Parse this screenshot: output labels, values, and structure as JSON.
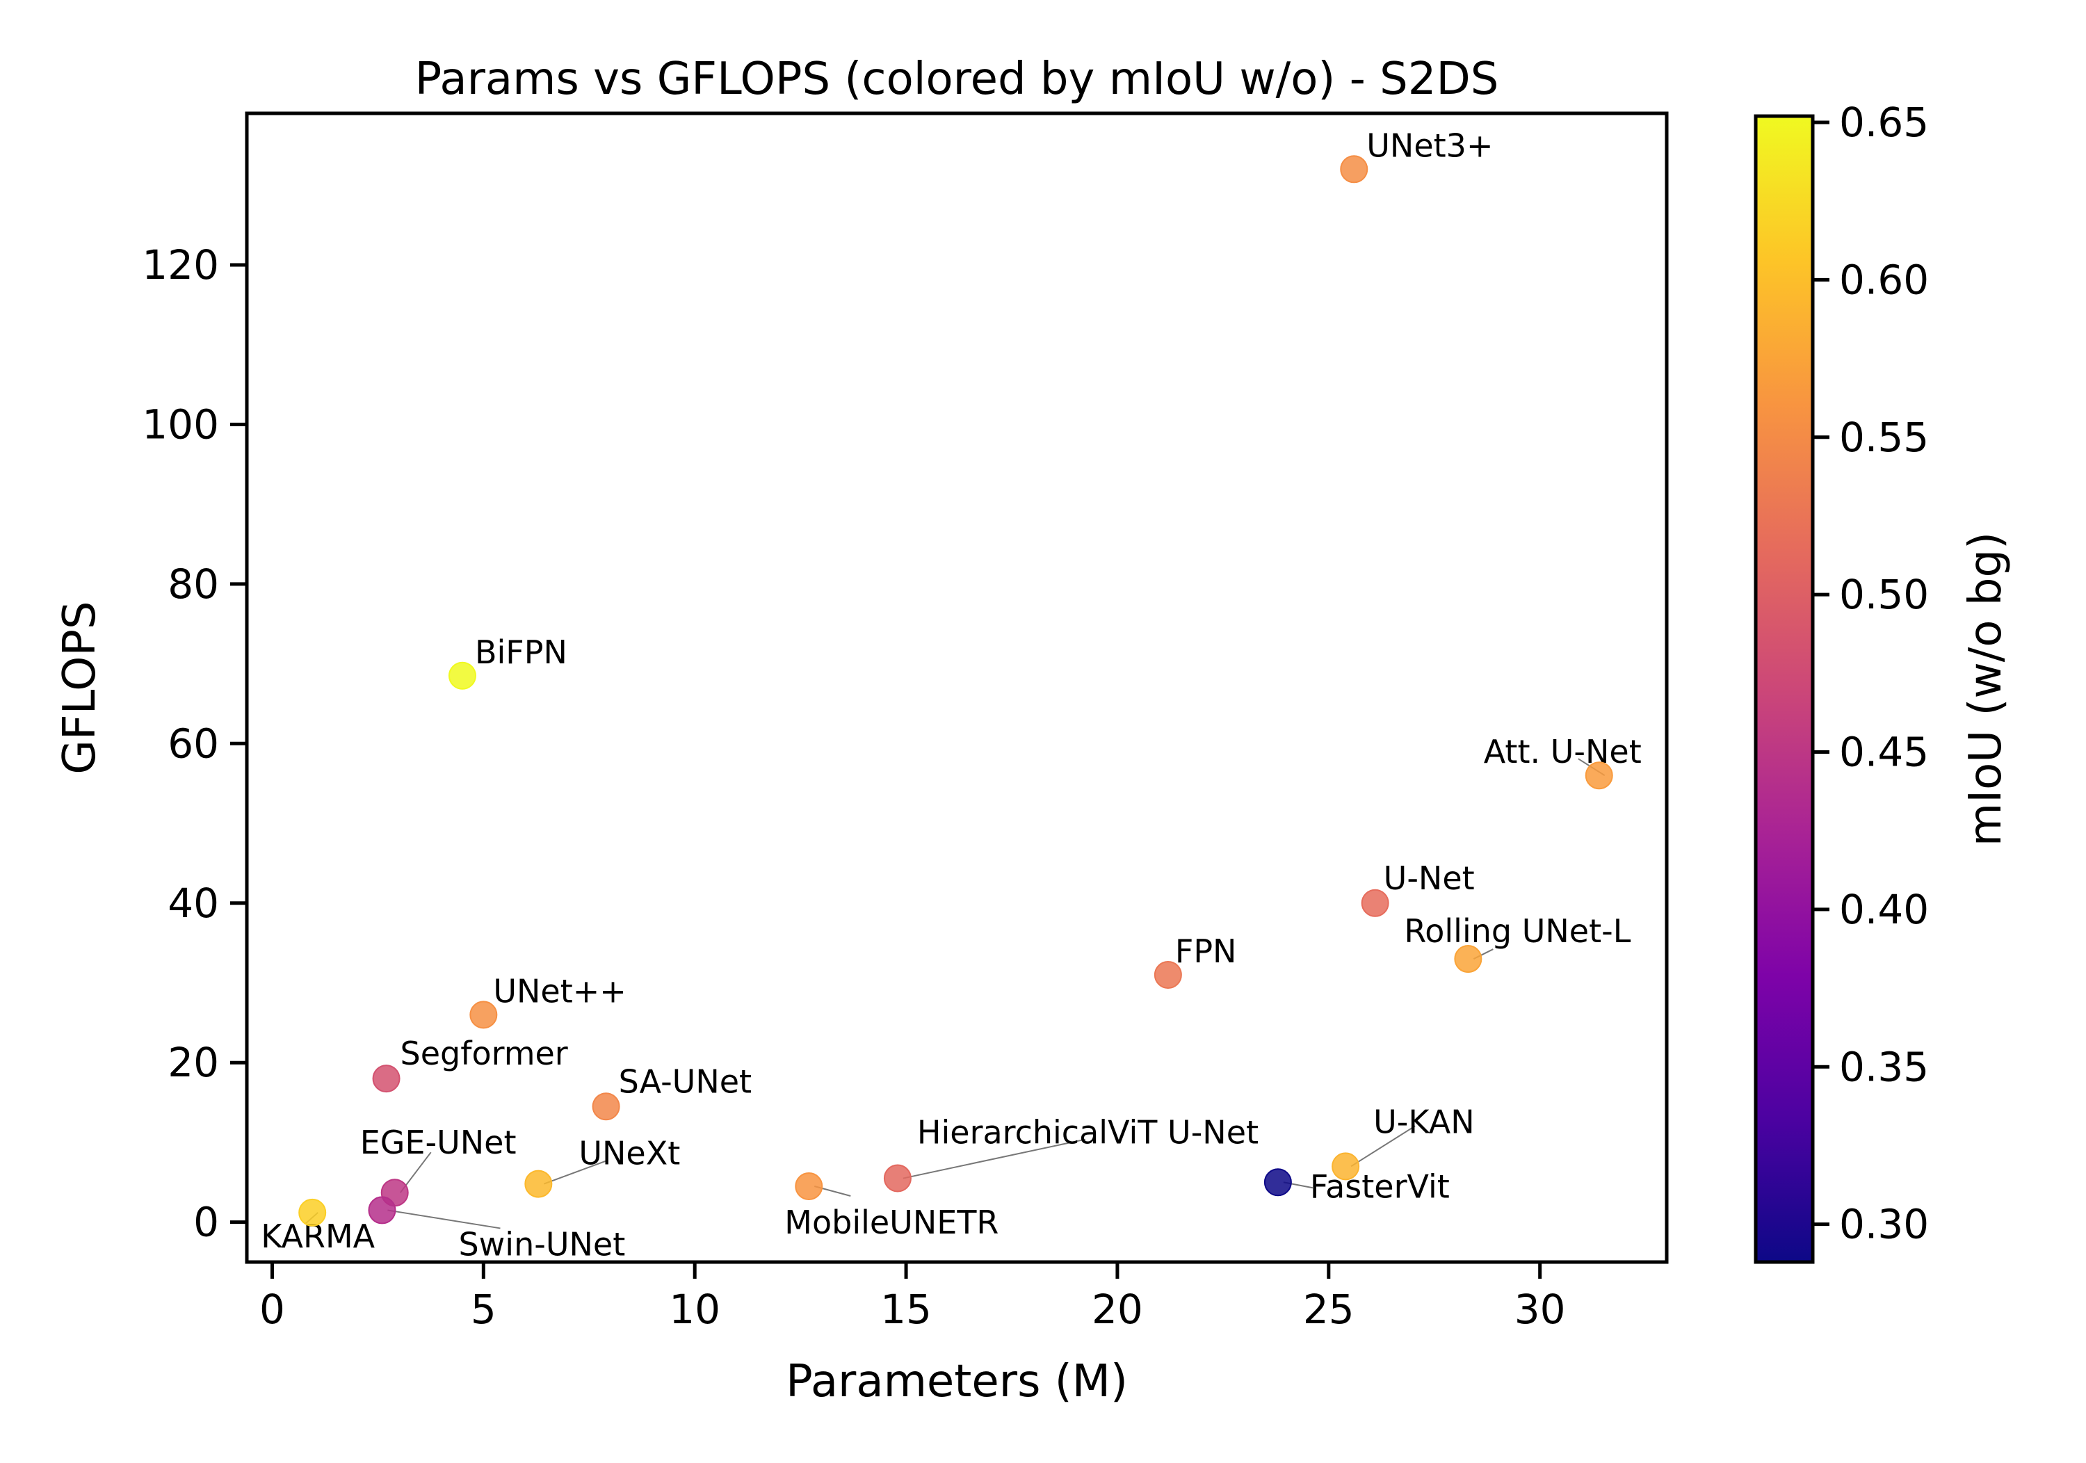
{
  "chart_data": {
    "type": "scatter",
    "title": "Params vs GFLOPS (colored by mIoU w/o) - S2DS",
    "xlabel": "Parameters (M)",
    "ylabel": "GFLOPS",
    "xlim": [
      -0.6,
      33
    ],
    "ylim": [
      -5,
      139
    ],
    "xticks": [
      0,
      5,
      10,
      15,
      20,
      25,
      30
    ],
    "yticks": [
      0,
      20,
      40,
      60,
      80,
      100,
      120
    ],
    "grid": false,
    "colorbar": {
      "label": "mIoU (w/o bg)",
      "colormap": "plasma",
      "range": [
        0.288,
        0.652
      ],
      "ticks": [
        "0.30",
        "0.35",
        "0.40",
        "0.45",
        "0.50",
        "0.55",
        "0.60",
        "0.65"
      ]
    },
    "points": [
      {
        "name": "UNet3+",
        "x": 25.6,
        "y": 132,
        "miou": 0.553
      },
      {
        "name": "BiFPN",
        "x": 4.5,
        "y": 68.5,
        "miou": 0.652
      },
      {
        "name": "Att. U-Net",
        "x": 31.4,
        "y": 56,
        "miou": 0.567
      },
      {
        "name": "U-Net",
        "x": 26.1,
        "y": 40,
        "miou": 0.515
      },
      {
        "name": "Rolling UNet-L",
        "x": 28.3,
        "y": 33,
        "miou": 0.575
      },
      {
        "name": "FPN",
        "x": 21.2,
        "y": 31,
        "miou": 0.528
      },
      {
        "name": "UNet++",
        "x": 5.0,
        "y": 26,
        "miou": 0.555
      },
      {
        "name": "Segformer",
        "x": 2.7,
        "y": 18,
        "miou": 0.483
      },
      {
        "name": "SA-UNet",
        "x": 7.9,
        "y": 14.5,
        "miou": 0.545
      },
      {
        "name": "HierarchicalViT U-Net",
        "x": 14.8,
        "y": 5.5,
        "miou": 0.51
      },
      {
        "name": "U-KAN",
        "x": 25.4,
        "y": 7,
        "miou": 0.59
      },
      {
        "name": "UNeXt",
        "x": 6.3,
        "y": 4.8,
        "miou": 0.595
      },
      {
        "name": "MobileUNETR",
        "x": 12.7,
        "y": 4.5,
        "miou": 0.56
      },
      {
        "name": "FasterVit",
        "x": 23.8,
        "y": 5,
        "miou": 0.288
      },
      {
        "name": "EGE-UNet",
        "x": 2.9,
        "y": 3.7,
        "miou": 0.45
      },
      {
        "name": "Swin-UNet",
        "x": 2.6,
        "y": 1.5,
        "miou": 0.44
      },
      {
        "name": "KARMA",
        "x": 0.95,
        "y": 1.2,
        "miou": 0.615
      }
    ]
  }
}
